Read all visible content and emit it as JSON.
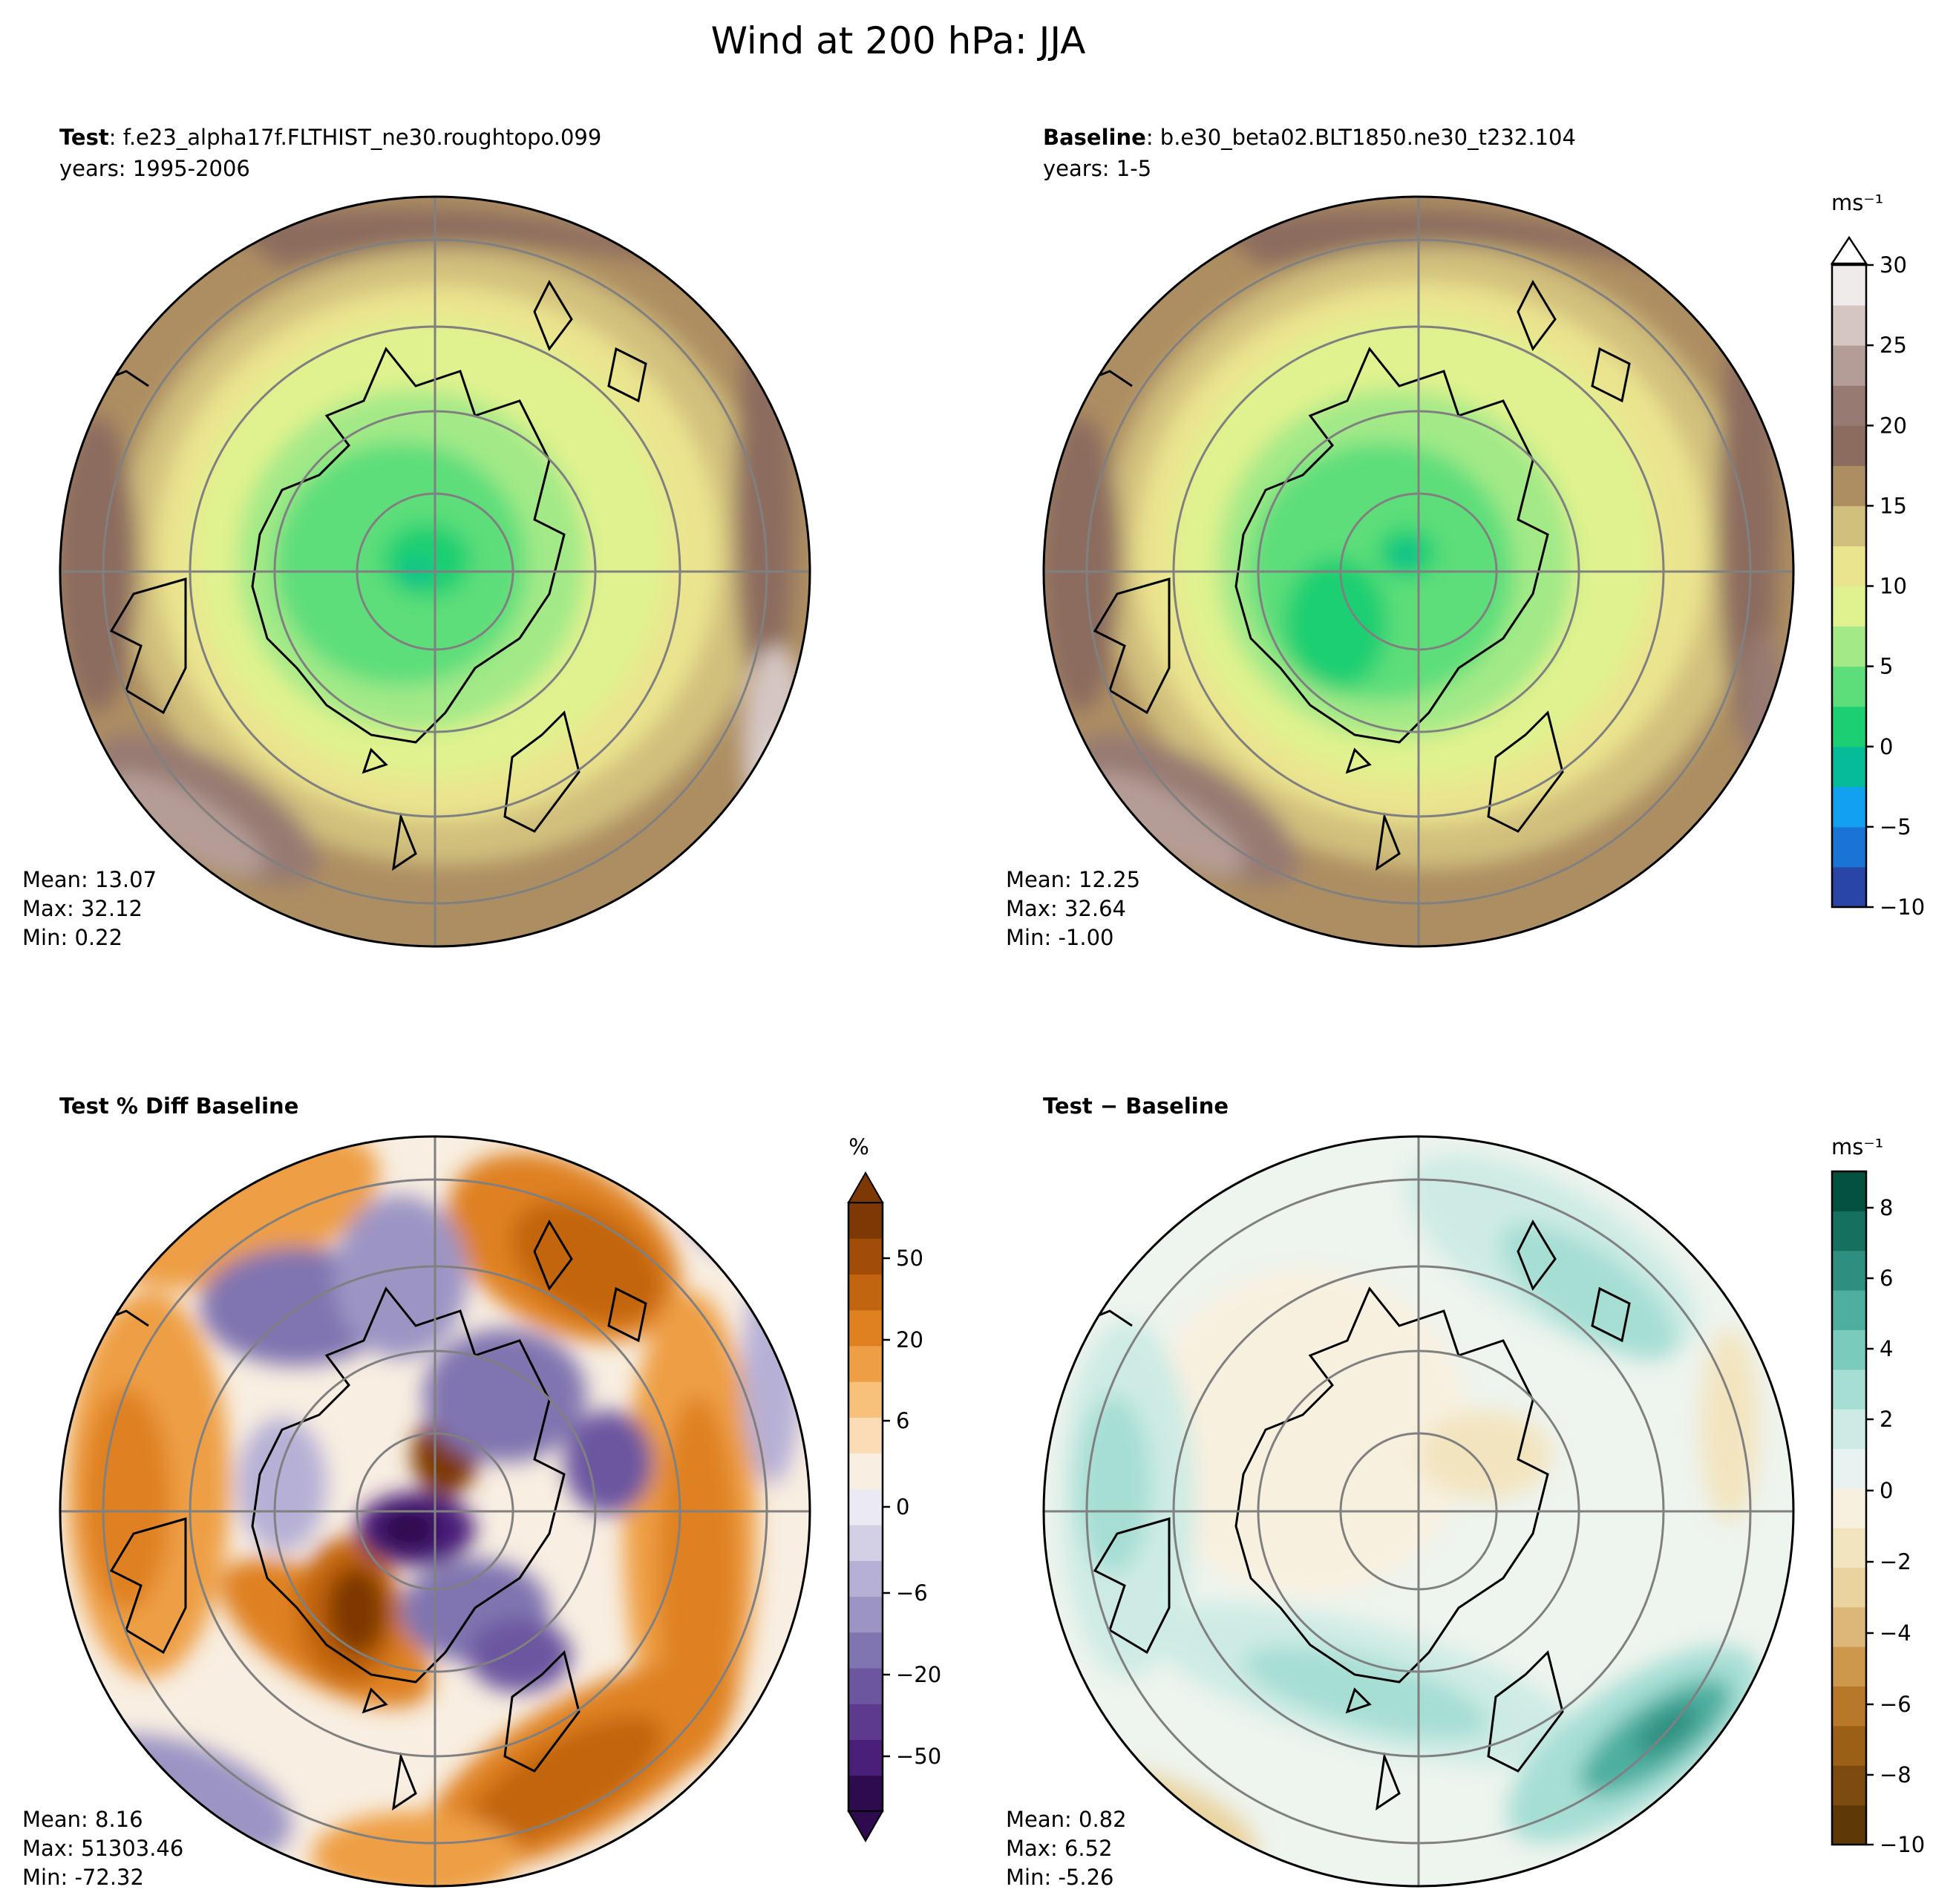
{
  "figure": {
    "title": "Wind at 200 hPa: JJA"
  },
  "colors": {
    "wind": [
      "#2a45a8",
      "#1a74d6",
      "#12a0f0",
      "#05bb98",
      "#1ccf72",
      "#5dde7a",
      "#a3e988",
      "#e0f28f",
      "#ebe48f",
      "#d1c07d",
      "#ad8e62",
      "#8c6c5f",
      "#977a72",
      "#b59d97",
      "#d5c6c2",
      "#eeebea"
    ],
    "pct": [
      "#2d0b4e",
      "#4a1f7a",
      "#5e3a8f",
      "#6c56a0",
      "#8075b0",
      "#9c95c4",
      "#b6b0d6",
      "#d3d0e6",
      "#ebeaf3",
      "#f8eee1",
      "#fbdcb6",
      "#f8c17b",
      "#ee9f45",
      "#df8120",
      "#c26510",
      "#a14c08",
      "#7e3805"
    ],
    "diff": [
      "#5f3808",
      "#7d4a0f",
      "#9b5f16",
      "#b8782a",
      "#cd974c",
      "#ddb779",
      "#ead39f",
      "#f3e4c0",
      "#f8f0df",
      "#e8f3f1",
      "#cdebe4",
      "#a6ded4",
      "#7bcbbd",
      "#4eafa0",
      "#2e8f80",
      "#16705f",
      "#05513f"
    ],
    "grid": "#808080"
  },
  "panels": [
    {
      "id": "test",
      "label_bold": "Test",
      "label_rest": ": f.e23_alpha17f.FLTHIST_ne30.roughtopo.099",
      "years": "years: 1995-2006",
      "stats": {
        "mean": "Mean: 13.07",
        "max": "Max: 32.12",
        "min": "Min:  0.22"
      }
    },
    {
      "id": "baseline",
      "label_bold": "Baseline",
      "label_rest": ": b.e30_beta02.BLT1850.ne30_t232.104",
      "years": "years: 1-5",
      "stats": {
        "mean": "Mean: 12.25",
        "max": "Max: 32.64",
        "min": "Min: -1.00"
      }
    },
    {
      "id": "pctdiff",
      "label_bold": "Test % Diff Baseline",
      "label_rest": "",
      "years": "",
      "stats": {
        "mean": "Mean:  8.16",
        "max": "Max: 51303.46",
        "min": "Min: -72.32"
      }
    },
    {
      "id": "diff",
      "label_bold": "Test − Baseline",
      "label_rest": "",
      "years": "",
      "stats": {
        "mean": "Mean:  0.82",
        "max": "Max:  6.52",
        "min": "Min: -5.26"
      }
    }
  ],
  "colorbars": {
    "wind": {
      "unit": "ms⁻¹",
      "ticks": [
        "30",
        "25",
        "20",
        "15",
        "10",
        "5",
        "0",
        "−5",
        "−10"
      ]
    },
    "pct": {
      "unit": "%",
      "ticks": [
        "50",
        "20",
        "6",
        "0",
        "−6",
        "−20",
        "−50"
      ]
    },
    "diff": {
      "unit": "ms⁻¹",
      "ticks": [
        "8",
        "6",
        "4",
        "2",
        "0",
        "−2",
        "−4",
        "−6",
        "−8",
        "−10"
      ]
    }
  },
  "chart_data": [
    {
      "type": "heatmap",
      "projection": "north-polar-stereographic",
      "title": "Test: f.e23_alpha17f.FLTHIST_ne30.roughtopo.099",
      "variable": "Wind at 200 hPa",
      "season": "JJA",
      "units": "m/s",
      "mean": 13.07,
      "max": 32.12,
      "min": 0.22,
      "levels": [
        -10,
        -7.5,
        -5,
        -2.5,
        0,
        2.5,
        5,
        7.5,
        10,
        12.5,
        15,
        17.5,
        20,
        22.5,
        25,
        27.5,
        30
      ],
      "colorbar_ticks": [
        -10,
        -5,
        0,
        5,
        10,
        15,
        20,
        25,
        30
      ]
    },
    {
      "type": "heatmap",
      "projection": "north-polar-stereographic",
      "title": "Baseline: b.e30_beta02.BLT1850.ne30_t232.104",
      "variable": "Wind at 200 hPa",
      "season": "JJA",
      "units": "m/s",
      "mean": 12.25,
      "max": 32.64,
      "min": -1.0,
      "levels": [
        -10,
        -7.5,
        -5,
        -2.5,
        0,
        2.5,
        5,
        7.5,
        10,
        12.5,
        15,
        17.5,
        20,
        22.5,
        25,
        27.5,
        30
      ],
      "colorbar_ticks": [
        -10,
        -5,
        0,
        5,
        10,
        15,
        20,
        25,
        30
      ]
    },
    {
      "type": "heatmap",
      "projection": "north-polar-stereographic",
      "title": "Test % Diff Baseline",
      "units": "%",
      "mean": 8.16,
      "max": 51303.46,
      "min": -72.32,
      "colorbar_ticks": [
        -50,
        -20,
        -6,
        0,
        6,
        20,
        50
      ]
    },
    {
      "type": "heatmap",
      "projection": "north-polar-stereographic",
      "title": "Test - Baseline",
      "units": "m/s",
      "mean": 0.82,
      "max": 6.52,
      "min": -5.26,
      "colorbar_ticks": [
        -10,
        -8,
        -6,
        -4,
        -2,
        0,
        2,
        4,
        6,
        8
      ]
    }
  ]
}
